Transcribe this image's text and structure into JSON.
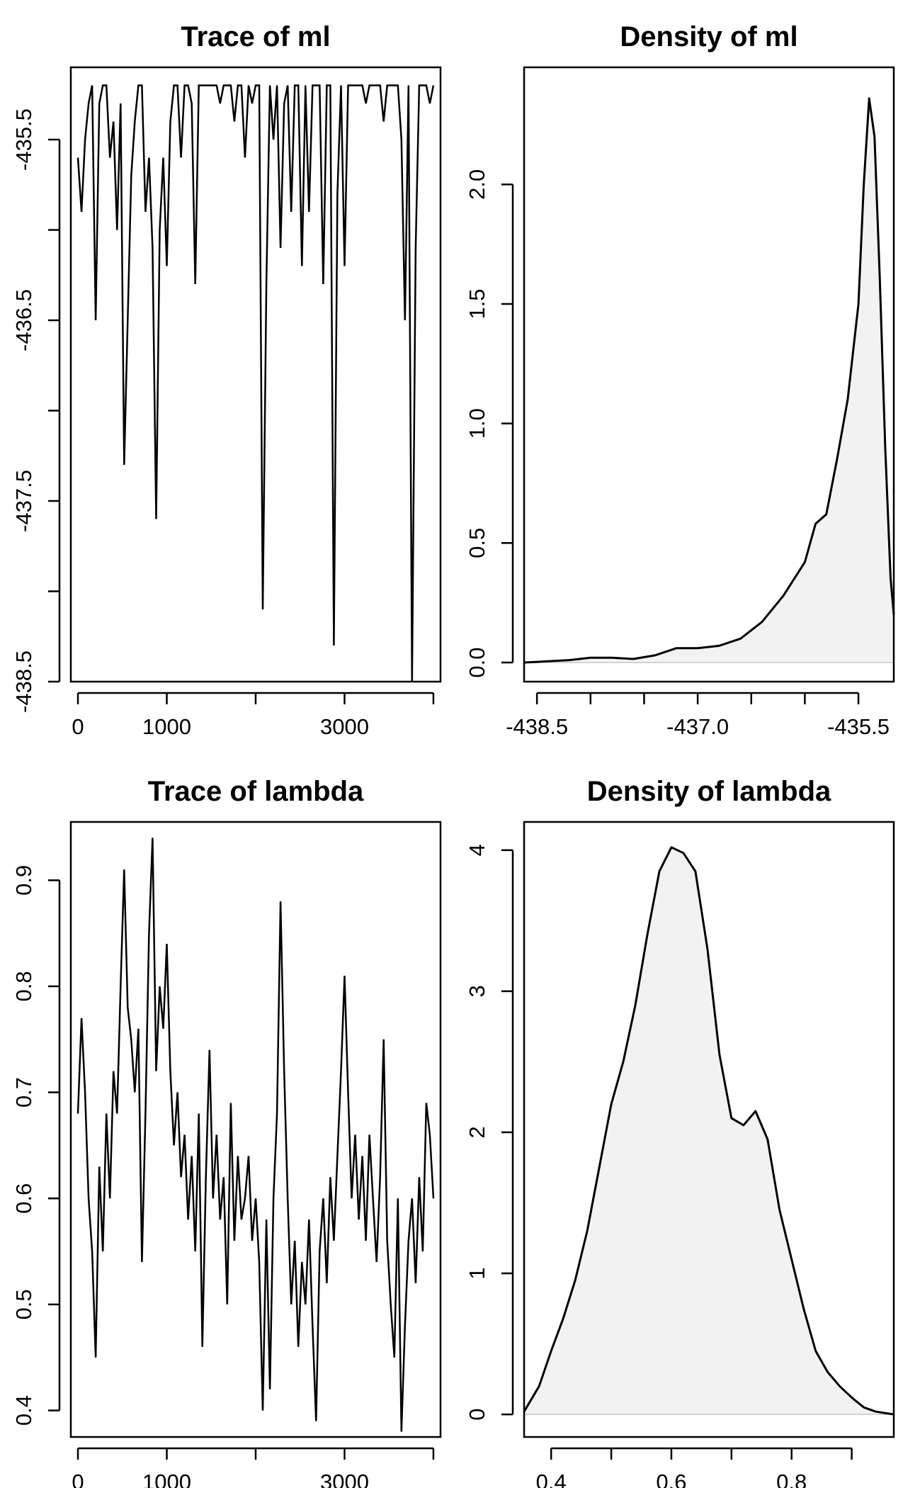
{
  "chart_data": [
    {
      "type": "line",
      "title": "Trace of ml",
      "xlabel": "",
      "ylabel": "",
      "xlim": [
        -80,
        4080
      ],
      "ylim": [
        -438.5,
        -435.1
      ],
      "x_ticks": [
        0,
        1000,
        2000,
        3000,
        4000
      ],
      "x_tick_labels": [
        "0",
        "1000",
        "",
        "3000",
        ""
      ],
      "y_ticks": [
        -435.5,
        -436,
        -436.5,
        -437,
        -437.5,
        -438,
        -438.5
      ],
      "y_tick_labels": [
        "-435.5",
        "",
        "-436.5",
        "",
        "-437.5",
        "",
        "-438.5"
      ],
      "series": [
        {
          "x": [
            0,
            40,
            80,
            120,
            160,
            200,
            240,
            280,
            320,
            360,
            400,
            440,
            480,
            520,
            560,
            600,
            640,
            680,
            720,
            760,
            800,
            840,
            880,
            920,
            960,
            1000,
            1040,
            1080,
            1120,
            1160,
            1200,
            1240,
            1280,
            1320,
            1360,
            1400,
            1440,
            1480,
            1520,
            1560,
            1600,
            1640,
            1680,
            1720,
            1760,
            1800,
            1840,
            1880,
            1920,
            1960,
            2000,
            2040,
            2080,
            2120,
            2160,
            2200,
            2240,
            2280,
            2320,
            2360,
            2400,
            2440,
            2480,
            2520,
            2560,
            2600,
            2640,
            2680,
            2720,
            2760,
            2800,
            2840,
            2880,
            2920,
            2960,
            3000,
            3040,
            3080,
            3120,
            3160,
            3200,
            3240,
            3280,
            3320,
            3360,
            3400,
            3440,
            3480,
            3520,
            3560,
            3600,
            3640,
            3680,
            3720,
            3760,
            3800,
            3840,
            3880,
            3920,
            3960,
            4000
          ],
          "values": [
            -435.6,
            -435.9,
            -435.5,
            -435.3,
            -435.2,
            -436.5,
            -435.3,
            -435.2,
            -435.2,
            -435.6,
            -435.4,
            -436.0,
            -435.3,
            -437.3,
            -436.5,
            -435.7,
            -435.4,
            -435.2,
            -435.2,
            -435.9,
            -435.6,
            -436.1,
            -437.6,
            -436.0,
            -435.6,
            -436.2,
            -435.4,
            -435.2,
            -435.2,
            -435.6,
            -435.2,
            -435.2,
            -435.3,
            -436.3,
            -435.2,
            -435.2,
            -435.2,
            -435.2,
            -435.2,
            -435.2,
            -435.3,
            -435.2,
            -435.2,
            -435.2,
            -435.4,
            -435.2,
            -435.2,
            -435.6,
            -435.2,
            -435.3,
            -435.2,
            -435.2,
            -438.1,
            -436.3,
            -435.2,
            -435.5,
            -435.2,
            -436.1,
            -435.3,
            -435.2,
            -435.9,
            -435.2,
            -435.2,
            -436.2,
            -435.2,
            -435.9,
            -435.2,
            -435.2,
            -435.2,
            -436.3,
            -435.2,
            -435.2,
            -438.3,
            -435.8,
            -435.2,
            -436.2,
            -435.2,
            -435.2,
            -435.2,
            -435.2,
            -435.2,
            -435.3,
            -435.2,
            -435.2,
            -435.2,
            -435.2,
            -435.4,
            -435.2,
            -435.2,
            -435.2,
            -435.2,
            -435.5,
            -436.5,
            -435.2,
            -438.5,
            -436.1,
            -435.2,
            -435.2,
            -435.2,
            -435.3,
            -435.2
          ]
        }
      ],
      "grid": false
    },
    {
      "type": "area",
      "title": "Density of ml",
      "xlabel": "",
      "ylabel": "",
      "xlim": [
        -438.62,
        -435.17
      ],
      "ylim": [
        -0.08,
        2.49
      ],
      "fill": "#f2f2f2",
      "x_ticks": [
        -438.5,
        -438,
        -437.5,
        -437,
        -436.5,
        -436,
        -435.5
      ],
      "x_tick_labels": [
        "-438.5",
        "",
        "",
        "-437.0",
        "",
        "",
        "-435.5"
      ],
      "y_ticks": [
        0,
        0.5,
        1,
        1.5,
        2
      ],
      "y_tick_labels": [
        "0.0",
        "0.5",
        "1.0",
        "1.5",
        "2.0"
      ],
      "series": [
        {
          "x": [
            -438.62,
            -438.4,
            -438.2,
            -438.0,
            -437.8,
            -437.6,
            -437.4,
            -437.2,
            -437.0,
            -436.8,
            -436.6,
            -436.4,
            -436.2,
            -436.0,
            -435.9,
            -435.8,
            -435.7,
            -435.6,
            -435.5,
            -435.45,
            -435.4,
            -435.35,
            -435.3,
            -435.25,
            -435.2,
            -435.17
          ],
          "values": [
            0.0,
            0.005,
            0.01,
            0.02,
            0.02,
            0.015,
            0.03,
            0.06,
            0.06,
            0.07,
            0.1,
            0.17,
            0.28,
            0.42,
            0.58,
            0.62,
            0.85,
            1.1,
            1.5,
            2.0,
            2.36,
            2.2,
            1.6,
            0.9,
            0.35,
            0.2
          ]
        }
      ],
      "grid": false
    },
    {
      "type": "line",
      "title": "Trace of lambda",
      "xlabel": "",
      "ylabel": "",
      "xlim": [
        -80,
        4080
      ],
      "ylim": [
        0.375,
        0.955
      ],
      "x_ticks": [
        0,
        1000,
        2000,
        3000,
        4000
      ],
      "x_tick_labels": [
        "0",
        "1000",
        "",
        "3000",
        ""
      ],
      "y_ticks": [
        0.4,
        0.5,
        0.6,
        0.7,
        0.8,
        0.9
      ],
      "y_tick_labels": [
        "0.4",
        "0.5",
        "0.6",
        "0.7",
        "0.8",
        "0.9"
      ],
      "series": [
        {
          "x": [
            0,
            40,
            80,
            120,
            160,
            200,
            240,
            280,
            320,
            360,
            400,
            440,
            480,
            520,
            560,
            600,
            640,
            680,
            720,
            760,
            800,
            840,
            880,
            920,
            960,
            1000,
            1040,
            1080,
            1120,
            1160,
            1200,
            1240,
            1280,
            1320,
            1360,
            1400,
            1440,
            1480,
            1520,
            1560,
            1600,
            1640,
            1680,
            1720,
            1760,
            1800,
            1840,
            1880,
            1920,
            1960,
            2000,
            2040,
            2080,
            2120,
            2160,
            2200,
            2240,
            2280,
            2320,
            2360,
            2400,
            2440,
            2480,
            2520,
            2560,
            2600,
            2640,
            2680,
            2720,
            2760,
            2800,
            2840,
            2880,
            2920,
            2960,
            3000,
            3040,
            3080,
            3120,
            3160,
            3200,
            3240,
            3280,
            3320,
            3360,
            3400,
            3440,
            3480,
            3520,
            3560,
            3600,
            3640,
            3680,
            3720,
            3760,
            3800,
            3840,
            3880,
            3920,
            3960,
            4000
          ],
          "values": [
            0.68,
            0.77,
            0.7,
            0.6,
            0.55,
            0.45,
            0.63,
            0.55,
            0.68,
            0.6,
            0.72,
            0.68,
            0.8,
            0.91,
            0.78,
            0.75,
            0.7,
            0.76,
            0.54,
            0.68,
            0.85,
            0.94,
            0.72,
            0.8,
            0.76,
            0.84,
            0.72,
            0.65,
            0.7,
            0.62,
            0.66,
            0.58,
            0.64,
            0.55,
            0.68,
            0.46,
            0.62,
            0.74,
            0.6,
            0.66,
            0.58,
            0.62,
            0.5,
            0.69,
            0.56,
            0.64,
            0.58,
            0.6,
            0.64,
            0.56,
            0.6,
            0.54,
            0.4,
            0.58,
            0.42,
            0.6,
            0.68,
            0.88,
            0.72,
            0.6,
            0.5,
            0.56,
            0.46,
            0.54,
            0.5,
            0.58,
            0.48,
            0.39,
            0.55,
            0.6,
            0.52,
            0.62,
            0.56,
            0.64,
            0.72,
            0.81,
            0.7,
            0.6,
            0.66,
            0.58,
            0.64,
            0.56,
            0.66,
            0.6,
            0.54,
            0.62,
            0.75,
            0.56,
            0.5,
            0.45,
            0.6,
            0.38,
            0.48,
            0.56,
            0.6,
            0.52,
            0.62,
            0.55,
            0.69,
            0.66,
            0.6
          ]
        }
      ],
      "grid": false
    },
    {
      "type": "area",
      "title": "Density of lambda",
      "xlabel": "",
      "ylabel": "",
      "xlim": [
        0.355,
        0.97
      ],
      "ylim": [
        -0.16,
        4.2
      ],
      "fill": "#f2f2f2",
      "x_ticks": [
        0.4,
        0.5,
        0.6,
        0.7,
        0.8,
        0.9
      ],
      "x_tick_labels": [
        "0.4",
        "",
        "0.6",
        "",
        "0.8",
        ""
      ],
      "y_ticks": [
        0,
        1,
        2,
        3,
        4
      ],
      "y_tick_labels": [
        "0",
        "1",
        "2",
        "3",
        "4"
      ],
      "series": [
        {
          "x": [
            0.355,
            0.38,
            0.4,
            0.42,
            0.44,
            0.46,
            0.48,
            0.5,
            0.52,
            0.54,
            0.56,
            0.58,
            0.6,
            0.62,
            0.64,
            0.66,
            0.68,
            0.7,
            0.72,
            0.74,
            0.76,
            0.78,
            0.8,
            0.82,
            0.84,
            0.86,
            0.88,
            0.9,
            0.92,
            0.94,
            0.97
          ],
          "values": [
            0.02,
            0.2,
            0.45,
            0.68,
            0.95,
            1.3,
            1.75,
            2.2,
            2.5,
            2.9,
            3.4,
            3.85,
            4.02,
            3.98,
            3.85,
            3.3,
            2.55,
            2.1,
            2.05,
            2.15,
            1.95,
            1.45,
            1.1,
            0.75,
            0.45,
            0.3,
            0.2,
            0.12,
            0.05,
            0.02,
            0.0
          ]
        }
      ],
      "grid": false
    }
  ]
}
